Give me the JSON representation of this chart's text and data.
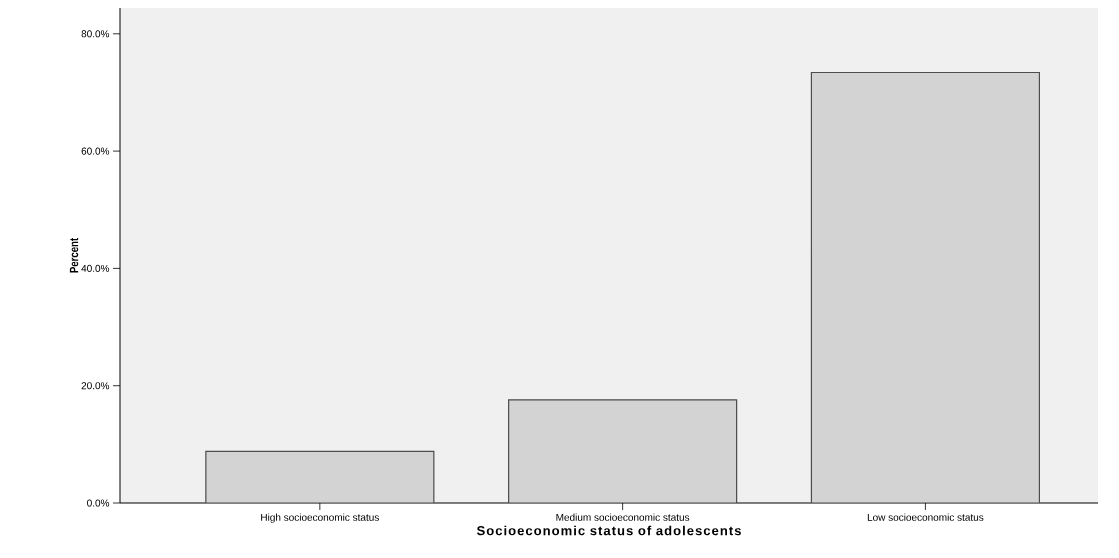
{
  "chart_data": {
    "type": "bar",
    "xlabel": "Socioeconomic status of adolescents",
    "ylabel": "Percent",
    "categories": [
      "High socioeconomic status",
      "Medium socioeconomic status",
      "Low socioeconomic status"
    ],
    "values": [
      8.8,
      17.6,
      73.4
    ],
    "color": "#d3d3d3",
    "ylim": [
      0,
      84.4
    ],
    "yticks": [
      {
        "value": 0,
        "label": "0.0%"
      },
      {
        "value": 20,
        "label": "20.0%"
      },
      {
        "value": 40,
        "label": "40.0%"
      },
      {
        "value": 60,
        "label": "60.0%"
      },
      {
        "value": 80,
        "label": "80.0%"
      }
    ],
    "line_style": "solid"
  }
}
